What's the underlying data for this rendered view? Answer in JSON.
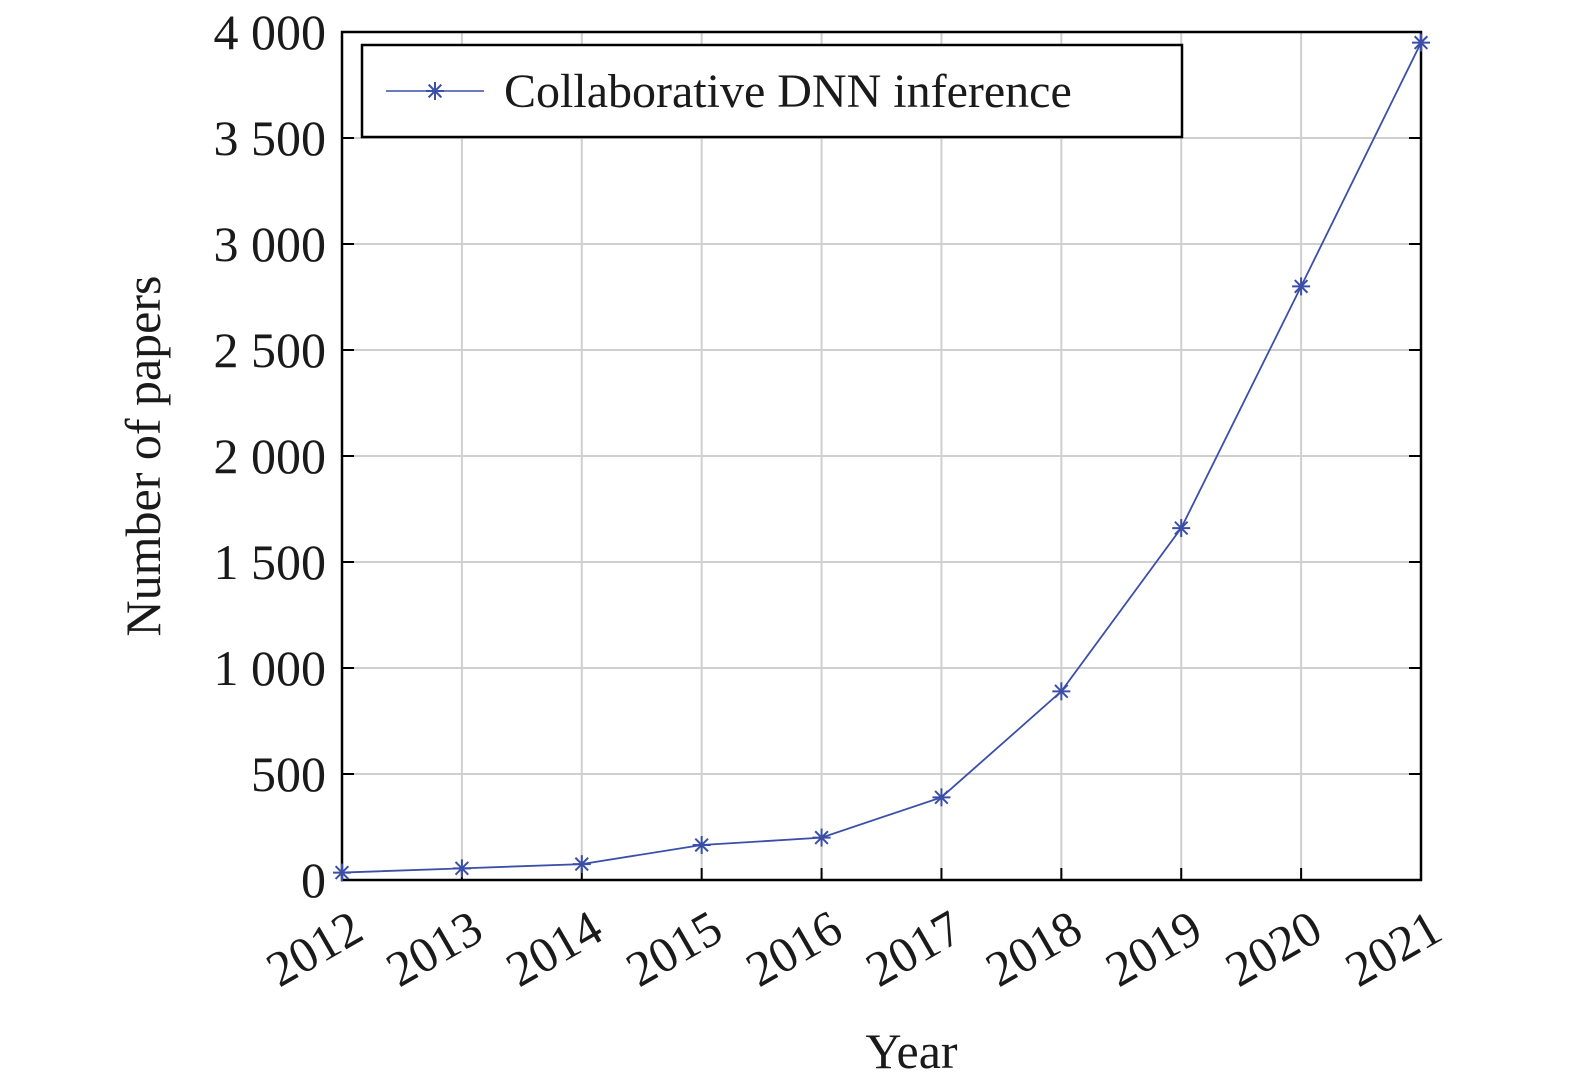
{
  "chart_data": {
    "type": "line",
    "x": [
      2012,
      2013,
      2014,
      2015,
      2016,
      2017,
      2018,
      2019,
      2020,
      2021
    ],
    "x_tick_labels": [
      "2012",
      "2013",
      "2014",
      "2015",
      "2016",
      "2017",
      "2018",
      "2019",
      "2020",
      "2021"
    ],
    "series": [
      {
        "name": "Collaborative DNN inference",
        "values": [
          35,
          55,
          75,
          165,
          200,
          390,
          890,
          1660,
          2800,
          3950
        ],
        "color": "#3b4fa8",
        "marker": "asterisk"
      }
    ],
    "xlabel": "Year",
    "ylabel": "Number of papers",
    "xlim": [
      2012,
      2021
    ],
    "ylim": [
      0,
      4000
    ],
    "y_ticks": [
      0,
      500,
      1000,
      1500,
      2000,
      2500,
      3000,
      3500,
      4000
    ],
    "y_tick_labels": [
      "0",
      "500",
      "1 000",
      "1 500",
      "2 000",
      "2 500",
      "3 000",
      "3 500",
      "4 000"
    ],
    "grid": true,
    "legend_position": "top-left"
  }
}
